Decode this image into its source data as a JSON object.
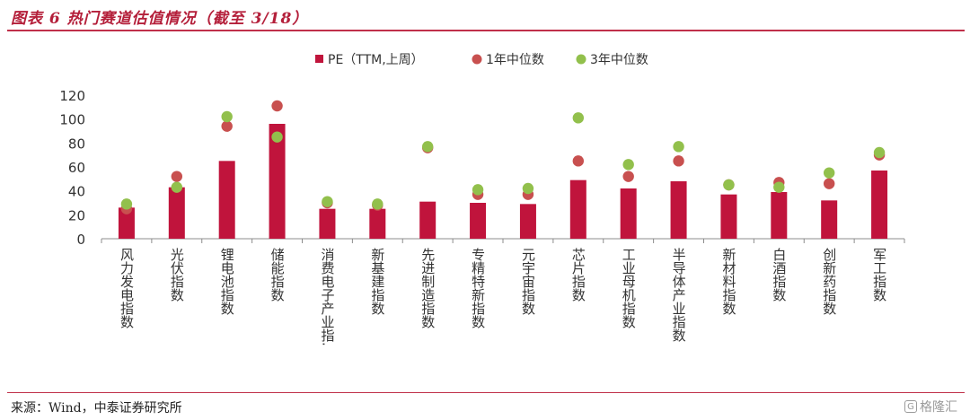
{
  "header": {
    "title": "图表 6 热门赛道估值情况（截至 3/18）"
  },
  "footer": {
    "source": "来源：Wind，中泰证券研究所",
    "watermark": "格隆汇"
  },
  "colors": {
    "pe_bar": "#c0143c",
    "median_1y": "#c8504f",
    "median_3y": "#92c04c",
    "brand": "#b41f3a"
  },
  "chart_data": {
    "type": "bar",
    "title": "",
    "xlabel": "",
    "ylabel": "",
    "ylim": [
      0,
      120
    ],
    "yticks": [
      "0",
      "20",
      "40",
      "60",
      "80",
      "100",
      "120"
    ],
    "grid": false,
    "legend_position": "top-center",
    "categories": [
      "风力发电指数",
      "光伏指数",
      "锂电池指数",
      "储能指数",
      "消费电子产业指.",
      "新基建指数",
      "先进制造指数",
      "专精特新指数",
      "元宇宙指数",
      "芯片指数",
      "工业母机指数",
      "半导体产业指数",
      "新材料指数",
      "白酒指数",
      "创新药指数",
      "军工指数"
    ],
    "series": [
      {
        "name": "PE（TTM,上周）",
        "kind": "bar",
        "values": [
          26,
          43,
          65,
          96,
          25,
          25,
          31,
          30,
          29,
          49,
          42,
          48,
          37,
          39,
          32,
          57
        ]
      },
      {
        "name": "1年中位数",
        "kind": "dot",
        "values": [
          25,
          52,
          94,
          111,
          30,
          28,
          76,
          37,
          37,
          65,
          52,
          65,
          45,
          47,
          46,
          70
        ]
      },
      {
        "name": "3年中位数",
        "kind": "dot",
        "values": [
          29,
          43,
          102,
          85,
          31,
          29,
          77,
          41,
          42,
          101,
          62,
          77,
          45,
          43,
          55,
          72
        ]
      }
    ]
  }
}
